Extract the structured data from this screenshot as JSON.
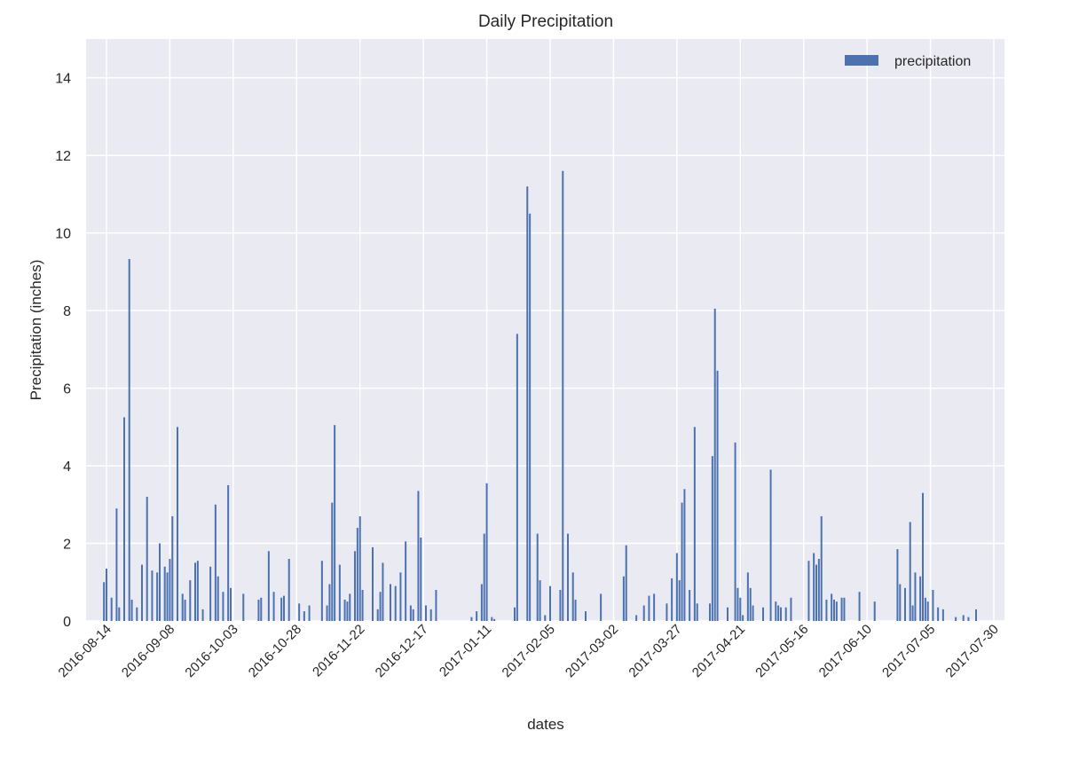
{
  "chart_data": {
    "type": "bar",
    "title": "Daily Precipitation",
    "xlabel": "dates",
    "ylabel": "Precipitation (inches)",
    "ylim": [
      0,
      15
    ],
    "yticks": [
      0,
      2,
      4,
      6,
      8,
      10,
      12,
      14
    ],
    "xtick_labels": [
      "2016-08-14",
      "2016-09-08",
      "2016-10-03",
      "2016-10-28",
      "2016-11-22",
      "2016-12-17",
      "2017-01-11",
      "2017-02-05",
      "2017-03-02",
      "2017-03-27",
      "2017-04-21",
      "2017-05-16",
      "2017-06-10",
      "2017-07-05",
      "2017-07-30"
    ],
    "grid": true,
    "legend_position": "top-right",
    "series": [
      {
        "name": "precipitation",
        "color": "#4c72b0",
        "points": [
          [
            "2016-08-13",
            1.0
          ],
          [
            "2016-08-14",
            1.35
          ],
          [
            "2016-08-16",
            0.6
          ],
          [
            "2016-08-18",
            2.9
          ],
          [
            "2016-08-19",
            0.35
          ],
          [
            "2016-08-21",
            5.25
          ],
          [
            "2016-08-23",
            9.33
          ],
          [
            "2016-08-24",
            0.55
          ],
          [
            "2016-08-26",
            0.35
          ],
          [
            "2016-08-28",
            1.45
          ],
          [
            "2016-08-30",
            3.2
          ],
          [
            "2016-09-01",
            1.3
          ],
          [
            "2016-09-03",
            1.25
          ],
          [
            "2016-09-04",
            2.0
          ],
          [
            "2016-09-06",
            1.4
          ],
          [
            "2016-09-07",
            1.25
          ],
          [
            "2016-09-08",
            1.6
          ],
          [
            "2016-09-09",
            2.7
          ],
          [
            "2016-09-11",
            5.0
          ],
          [
            "2016-09-13",
            0.7
          ],
          [
            "2016-09-14",
            0.55
          ],
          [
            "2016-09-16",
            1.05
          ],
          [
            "2016-09-18",
            1.5
          ],
          [
            "2016-09-19",
            1.55
          ],
          [
            "2016-09-21",
            0.3
          ],
          [
            "2016-09-24",
            1.4
          ],
          [
            "2016-09-26",
            3.0
          ],
          [
            "2016-09-27",
            1.15
          ],
          [
            "2016-09-29",
            0.75
          ],
          [
            "2016-10-01",
            3.5
          ],
          [
            "2016-10-02",
            0.85
          ],
          [
            "2016-10-07",
            0.7
          ],
          [
            "2016-10-13",
            0.55
          ],
          [
            "2016-10-14",
            0.6
          ],
          [
            "2016-10-17",
            1.8
          ],
          [
            "2016-10-19",
            0.75
          ],
          [
            "2016-10-22",
            0.6
          ],
          [
            "2016-10-23",
            0.65
          ],
          [
            "2016-10-25",
            1.6
          ],
          [
            "2016-10-29",
            0.45
          ],
          [
            "2016-10-31",
            0.25
          ],
          [
            "2016-11-02",
            0.4
          ],
          [
            "2016-11-07",
            1.55
          ],
          [
            "2016-11-09",
            0.4
          ],
          [
            "2016-11-10",
            0.95
          ],
          [
            "2016-11-11",
            3.05
          ],
          [
            "2016-11-12",
            5.05
          ],
          [
            "2016-11-14",
            1.45
          ],
          [
            "2016-11-16",
            0.55
          ],
          [
            "2016-11-17",
            0.5
          ],
          [
            "2016-11-18",
            0.7
          ],
          [
            "2016-11-20",
            1.8
          ],
          [
            "2016-11-21",
            2.4
          ],
          [
            "2016-11-22",
            2.7
          ],
          [
            "2016-11-23",
            0.8
          ],
          [
            "2016-11-27",
            1.9
          ],
          [
            "2016-11-29",
            0.3
          ],
          [
            "2016-11-30",
            0.75
          ],
          [
            "2016-12-01",
            1.5
          ],
          [
            "2016-12-04",
            0.95
          ],
          [
            "2016-12-06",
            0.9
          ],
          [
            "2016-12-08",
            1.25
          ],
          [
            "2016-12-10",
            2.05
          ],
          [
            "2016-12-12",
            0.4
          ],
          [
            "2016-12-13",
            0.3
          ],
          [
            "2016-12-15",
            3.35
          ],
          [
            "2016-12-16",
            2.15
          ],
          [
            "2016-12-18",
            0.4
          ],
          [
            "2016-12-20",
            0.3
          ],
          [
            "2016-12-22",
            0.8
          ],
          [
            "2017-01-05",
            0.1
          ],
          [
            "2017-01-07",
            0.25
          ],
          [
            "2017-01-09",
            0.95
          ],
          [
            "2017-01-10",
            2.25
          ],
          [
            "2017-01-11",
            3.55
          ],
          [
            "2017-01-13",
            0.1
          ],
          [
            "2017-01-14",
            0.05
          ],
          [
            "2017-01-22",
            0.35
          ],
          [
            "2017-01-23",
            7.4
          ],
          [
            "2017-01-27",
            11.2
          ],
          [
            "2017-01-28",
            10.5
          ],
          [
            "2017-01-31",
            2.25
          ],
          [
            "2017-02-01",
            1.05
          ],
          [
            "2017-02-03",
            0.15
          ],
          [
            "2017-02-05",
            0.9
          ],
          [
            "2017-02-09",
            0.8
          ],
          [
            "2017-02-10",
            11.6
          ],
          [
            "2017-02-12",
            2.25
          ],
          [
            "2017-02-14",
            1.25
          ],
          [
            "2017-02-15",
            0.55
          ],
          [
            "2017-02-19",
            0.25
          ],
          [
            "2017-02-25",
            0.7
          ],
          [
            "2017-03-06",
            1.15
          ],
          [
            "2017-03-07",
            1.95
          ],
          [
            "2017-03-11",
            0.15
          ],
          [
            "2017-03-14",
            0.4
          ],
          [
            "2017-03-16",
            0.65
          ],
          [
            "2017-03-18",
            0.7
          ],
          [
            "2017-03-23",
            0.45
          ],
          [
            "2017-03-25",
            1.1
          ],
          [
            "2017-03-27",
            1.75
          ],
          [
            "2017-03-28",
            1.05
          ],
          [
            "2017-03-29",
            3.05
          ],
          [
            "2017-03-30",
            3.4
          ],
          [
            "2017-04-01",
            0.8
          ],
          [
            "2017-04-03",
            5.0
          ],
          [
            "2017-04-04",
            0.45
          ],
          [
            "2017-04-09",
            0.45
          ],
          [
            "2017-04-10",
            4.25
          ],
          [
            "2017-04-11",
            8.05
          ],
          [
            "2017-04-12",
            6.45
          ],
          [
            "2017-04-16",
            0.35
          ],
          [
            "2017-04-19",
            4.6
          ],
          [
            "2017-04-20",
            0.85
          ],
          [
            "2017-04-21",
            0.6
          ],
          [
            "2017-04-22",
            0.15
          ],
          [
            "2017-04-24",
            1.25
          ],
          [
            "2017-04-25",
            0.85
          ],
          [
            "2017-04-26",
            0.4
          ],
          [
            "2017-04-30",
            0.35
          ],
          [
            "2017-05-03",
            3.9
          ],
          [
            "2017-05-05",
            0.5
          ],
          [
            "2017-05-06",
            0.4
          ],
          [
            "2017-05-07",
            0.35
          ],
          [
            "2017-05-09",
            0.35
          ],
          [
            "2017-05-11",
            0.6
          ],
          [
            "2017-05-18",
            1.55
          ],
          [
            "2017-05-20",
            1.75
          ],
          [
            "2017-05-21",
            1.45
          ],
          [
            "2017-05-22",
            1.6
          ],
          [
            "2017-05-23",
            2.7
          ],
          [
            "2017-05-25",
            0.55
          ],
          [
            "2017-05-27",
            0.7
          ],
          [
            "2017-05-28",
            0.55
          ],
          [
            "2017-05-29",
            0.5
          ],
          [
            "2017-05-31",
            0.6
          ],
          [
            "2017-06-01",
            0.6
          ],
          [
            "2017-06-07",
            0.75
          ],
          [
            "2017-06-13",
            0.5
          ],
          [
            "2017-06-22",
            1.85
          ],
          [
            "2017-06-23",
            0.95
          ],
          [
            "2017-06-25",
            0.85
          ],
          [
            "2017-06-27",
            2.55
          ],
          [
            "2017-06-28",
            0.4
          ],
          [
            "2017-06-29",
            1.25
          ],
          [
            "2017-07-01",
            1.15
          ],
          [
            "2017-07-02",
            3.3
          ],
          [
            "2017-07-03",
            0.6
          ],
          [
            "2017-07-04",
            0.5
          ],
          [
            "2017-07-06",
            0.8
          ],
          [
            "2017-07-08",
            0.35
          ],
          [
            "2017-07-10",
            0.3
          ],
          [
            "2017-07-15",
            0.1
          ],
          [
            "2017-07-18",
            0.15
          ],
          [
            "2017-07-20",
            0.1
          ],
          [
            "2017-07-23",
            0.3
          ]
        ]
      }
    ]
  }
}
